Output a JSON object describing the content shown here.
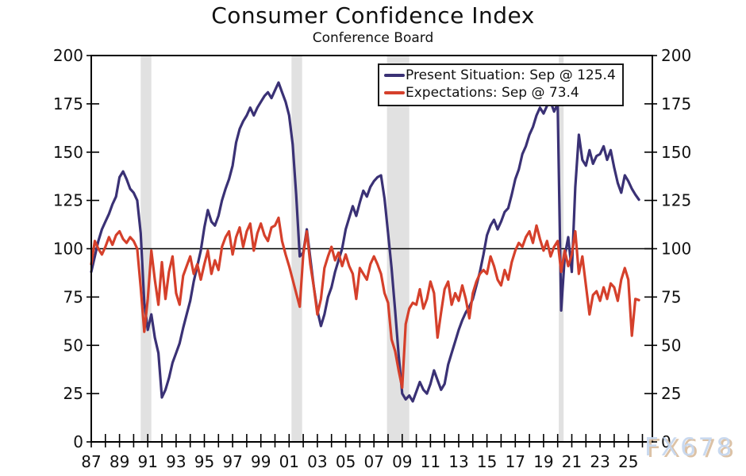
{
  "title": "Consumer Confidence Index",
  "subtitle": "Conference Board",
  "watermark": "FX678",
  "legend": {
    "items": [
      {
        "label": "Present Situation: Sep @ 125.4"
      },
      {
        "label": "Expectations: Sep @ 73.4"
      }
    ]
  },
  "chart_data": {
    "type": "line",
    "title": "Consumer Confidence Index",
    "subtitle": "Conference Board",
    "xlabel": "",
    "ylabel": "",
    "xlim": [
      1987,
      2026.7
    ],
    "ylim": [
      0,
      200
    ],
    "y_ticks": [
      0,
      25,
      50,
      75,
      100,
      125,
      150,
      175,
      200
    ],
    "y_ticks_both_sides": true,
    "x_tick_year_start": 1987,
    "x_tick_year_end": 2026,
    "x_tick_labels": [
      {
        "year": 1987,
        "label": "87"
      },
      {
        "year": 1989,
        "label": "89"
      },
      {
        "year": 1991,
        "label": "91"
      },
      {
        "year": 1993,
        "label": "93"
      },
      {
        "year": 1995,
        "label": "95"
      },
      {
        "year": 1997,
        "label": "97"
      },
      {
        "year": 1999,
        "label": "99"
      },
      {
        "year": 2001,
        "label": "01"
      },
      {
        "year": 2003,
        "label": "03"
      },
      {
        "year": 2005,
        "label": "05"
      },
      {
        "year": 2007,
        "label": "07"
      },
      {
        "year": 2009,
        "label": "09"
      },
      {
        "year": 2011,
        "label": "11"
      },
      {
        "year": 2013,
        "label": "13"
      },
      {
        "year": 2015,
        "label": "15"
      },
      {
        "year": 2017,
        "label": "17"
      },
      {
        "year": 2019,
        "label": "19"
      },
      {
        "year": 2021,
        "label": "21"
      },
      {
        "year": 2023,
        "label": "23"
      },
      {
        "year": 2025,
        "label": "25"
      }
    ],
    "reference_line": 100,
    "grid": false,
    "legend_position": "top-right",
    "recession_bands": [
      [
        1990.5,
        1991.25
      ],
      [
        2001.17,
        2001.92
      ],
      [
        2007.92,
        2009.5
      ],
      [
        2020.08,
        2020.42
      ]
    ],
    "colors": {
      "present_situation": "#3a3175",
      "expectations": "#d5402b",
      "recession_band": "#e1e1e1",
      "axis": "#000000",
      "reference_line": "#000000"
    },
    "x_start": 1987.0,
    "x_step": 0.25,
    "x_end": 2025.75,
    "sampling": "quarterly estimates read from plot; last point Sep 2025",
    "series": [
      {
        "name": "Present Situation",
        "latest_point": "Sep @ 125.4",
        "color": "#3a3175",
        "values": [
          88,
          96,
          104,
          110,
          114,
          118,
          123,
          127,
          137,
          140,
          136,
          131,
          129,
          125,
          108,
          72,
          58,
          66,
          54,
          46,
          23,
          27,
          33,
          41,
          46,
          51,
          59,
          66,
          73,
          83,
          91,
          99,
          111,
          120,
          114,
          112,
          117,
          125,
          131,
          136,
          143,
          155,
          162,
          166,
          169,
          173,
          169,
          173,
          176,
          179,
          181,
          178,
          182,
          186,
          181,
          176,
          169,
          154,
          128,
          96,
          98,
          110,
          95,
          80,
          68,
          60,
          66,
          75,
          80,
          88,
          94,
          100,
          110,
          116,
          122,
          117,
          124,
          130,
          127,
          132,
          135,
          137,
          138,
          126,
          108,
          90,
          68,
          45,
          25,
          22,
          24,
          21,
          26,
          31,
          27,
          25,
          30,
          37,
          32,
          27,
          30,
          40,
          46,
          52,
          58,
          63,
          67,
          70,
          74,
          81,
          88,
          97,
          107,
          112,
          115,
          110,
          114,
          119,
          121,
          128,
          136,
          141,
          149,
          153,
          159,
          163,
          169,
          173,
          170,
          174,
          176,
          171,
          175,
          68,
          96,
          106,
          88,
          132,
          159,
          146,
          143,
          151,
          144,
          148,
          149,
          153,
          146,
          151,
          142,
          134,
          129,
          138,
          135,
          131,
          128,
          125.4
        ]
      },
      {
        "name": "Expectations",
        "latest_point": "Sep @ 73.4",
        "color": "#d5402b",
        "values": [
          92,
          104,
          100,
          97,
          101,
          106,
          102,
          107,
          109,
          105,
          103,
          106,
          104,
          100,
          80,
          57,
          74,
          99,
          84,
          71,
          93,
          74,
          88,
          96,
          77,
          71,
          86,
          91,
          96,
          87,
          92,
          84,
          92,
          99,
          87,
          94,
          89,
          101,
          106,
          109,
          97,
          106,
          111,
          101,
          109,
          113,
          99,
          108,
          113,
          107,
          104,
          111,
          112,
          116,
          104,
          97,
          91,
          84,
          77,
          70,
          97,
          109,
          92,
          80,
          66,
          74,
          90,
          96,
          101,
          94,
          98,
          91,
          97,
          91,
          87,
          74,
          90,
          87,
          84,
          92,
          96,
          92,
          87,
          77,
          72,
          53,
          47,
          37,
          28,
          61,
          69,
          72,
          71,
          79,
          69,
          74,
          83,
          77,
          54,
          67,
          79,
          83,
          71,
          77,
          73,
          81,
          74,
          64,
          77,
          83,
          87,
          89,
          87,
          96,
          91,
          84,
          81,
          89,
          84,
          93,
          99,
          103,
          101,
          106,
          109,
          103,
          112,
          105,
          99,
          104,
          96,
          101,
          104,
          88,
          99,
          91,
          97,
          109,
          87,
          96,
          81,
          66,
          76,
          78,
          73,
          80,
          74,
          82,
          80,
          73,
          84,
          90,
          84,
          55,
          74,
          73.4
        ]
      }
    ]
  }
}
